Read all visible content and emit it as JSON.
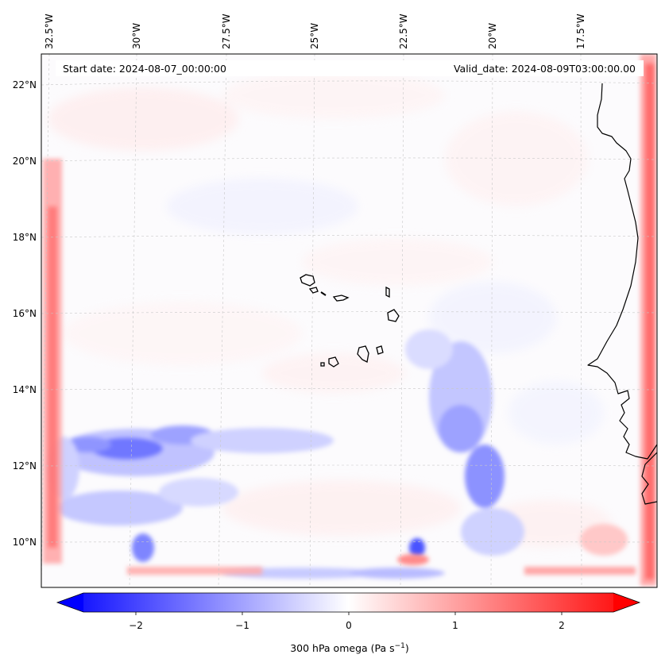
{
  "header": {
    "start_date": "Start date: 2024-08-07_00:00:00",
    "valid_date": "Valid_date: 2024-08-09T03:00:00.00"
  },
  "longitude_labels": [
    "32.5°W",
    "30°W",
    "27.5°W",
    "25°W",
    "22.5°W",
    "20°W",
    "17.5°W"
  ],
  "latitude_labels": [
    "22°N",
    "20°N",
    "18°N",
    "16°N",
    "14°N",
    "12°N",
    "10°N"
  ],
  "colorbar": {
    "ticks": [
      "−2",
      "−1",
      "0",
      "1",
      "2"
    ],
    "label": "300 hPa omega (Pa s",
    "label_sup": "−1",
    "label_suffix": ")",
    "min_color": "#0000ff",
    "mid_color": "#ffffff",
    "max_color": "#ff0000"
  },
  "colors": {
    "coastline": "#000000",
    "gridline": "#c8c8c8",
    "ascent": "#4b55ff",
    "descent": "#ff4848"
  },
  "map_features": [
    "Cape Verde islands",
    "West African coastline",
    "lateral boundary relaxation zone (strong positive omega at domain edges)",
    "organized ascent band near 12-13°N, 27-32°W",
    "ascent band near 12-15°N, 19-22°W"
  ]
}
